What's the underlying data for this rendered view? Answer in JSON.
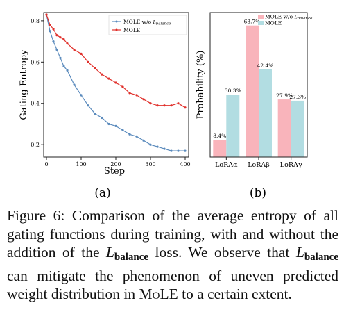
{
  "chart_data": [
    {
      "type": "line",
      "panel_label": "(a)",
      "xlabel": "Step",
      "ylabel": "Gating Entropy",
      "xlim": [
        -8,
        410
      ],
      "ylim": [
        0.14,
        0.84
      ],
      "xticks": [
        0,
        100,
        200,
        300,
        400
      ],
      "yticks": [
        0.2,
        0.4,
        0.6,
        0.8
      ],
      "xtick_labels": [
        "0",
        "100",
        "200",
        "300",
        "400"
      ],
      "ytick_labels": [
        "0.2",
        "0.4",
        "0.6",
        "0.8"
      ],
      "legend_position": "top-right",
      "grid": false,
      "x": [
        0,
        10,
        20,
        30,
        40,
        50,
        60,
        80,
        100,
        120,
        140,
        160,
        180,
        200,
        220,
        240,
        260,
        280,
        300,
        320,
        340,
        360,
        380,
        400
      ],
      "series": [
        {
          "name_prefix": "MOLE w/o ",
          "name_symbol": "L",
          "name_sub": "balance",
          "color": "#5b8bbd",
          "values": [
            0.83,
            0.75,
            0.7,
            0.66,
            0.62,
            0.58,
            0.56,
            0.49,
            0.44,
            0.39,
            0.35,
            0.33,
            0.3,
            0.29,
            0.27,
            0.25,
            0.24,
            0.22,
            0.2,
            0.19,
            0.18,
            0.17,
            0.17,
            0.17
          ]
        },
        {
          "name": "MOLE",
          "color": "#e0302b",
          "values": [
            0.83,
            0.78,
            0.76,
            0.73,
            0.72,
            0.71,
            0.69,
            0.66,
            0.64,
            0.6,
            0.57,
            0.54,
            0.52,
            0.5,
            0.48,
            0.45,
            0.44,
            0.42,
            0.4,
            0.39,
            0.39,
            0.39,
            0.4,
            0.38
          ]
        }
      ]
    },
    {
      "type": "bar",
      "panel_label": "(b)",
      "ylabel": "Probability (%)",
      "ylim": [
        0,
        70
      ],
      "categories": [
        "LoRAα",
        "LoRAβ",
        "LoRAγ"
      ],
      "legend_position": "top",
      "grid": false,
      "series": [
        {
          "name_prefix": "MOLE w/o ",
          "name_symbol": "L",
          "name_sub": "balance",
          "color": "#f9b4bb",
          "values": [
            8.4,
            63.7,
            27.9
          ],
          "labels": [
            "8.4%",
            "63.7%",
            "27.9%"
          ]
        },
        {
          "name": "MOLE",
          "color": "#b2dde2",
          "values": [
            30.3,
            42.4,
            27.3
          ],
          "labels": [
            "30.3%",
            "42.4%",
            "27.3%"
          ]
        }
      ]
    }
  ],
  "caption": {
    "part1": "Figure 6: Comparison of the average entropy of all gating functions during training, with and without the addition of the ",
    "symbol": "L",
    "sub": "balance",
    "part2": " loss. We observe that ",
    "part3": " can mitigate the phenomenon of uneven predicted weight distribution in ",
    "mole": "MoLE",
    "part4": " to a certain extent."
  }
}
